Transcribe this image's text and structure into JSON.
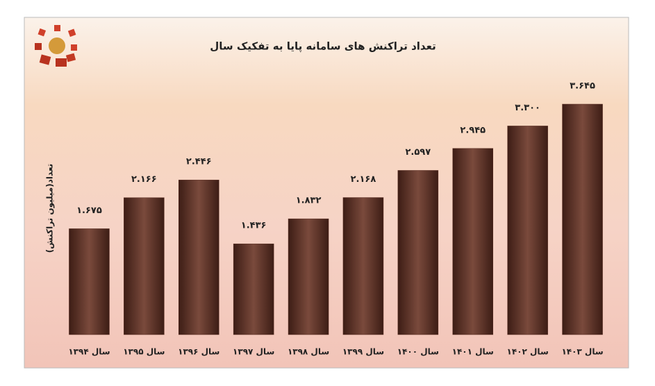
{
  "chart_data": {
    "type": "bar",
    "title": "تعداد تراکنش های سامانه پایا به تفکیک سال",
    "y_label": "تعداد(میلیون تراکنش)",
    "categories": [
      "سال ۱۳۹۴",
      "سال ۱۳۹۵",
      "سال ۱۳۹۶",
      "سال ۱۳۹۷",
      "سال ۱۳۹۸",
      "سال ۱۳۹۹",
      "سال ۱۴۰۰",
      "سال ۱۴۰۱",
      "سال ۱۴۰۲",
      "سال ۱۴۰۳"
    ],
    "values": [
      1.675,
      2.166,
      2.446,
      1.436,
      1.832,
      2.168,
      2.597,
      2.945,
      3.3,
      3.645
    ],
    "value_labels": [
      "۱.۶۷۵",
      "۲.۱۶۶",
      "۲.۴۴۶",
      "۱.۴۳۶",
      "۱.۸۳۲",
      "۲.۱۶۸",
      "۲.۵۹۷",
      "۲.۹۴۵",
      "۳.۳۰۰",
      "۳.۶۴۵"
    ],
    "color": "#5a2f24"
  }
}
